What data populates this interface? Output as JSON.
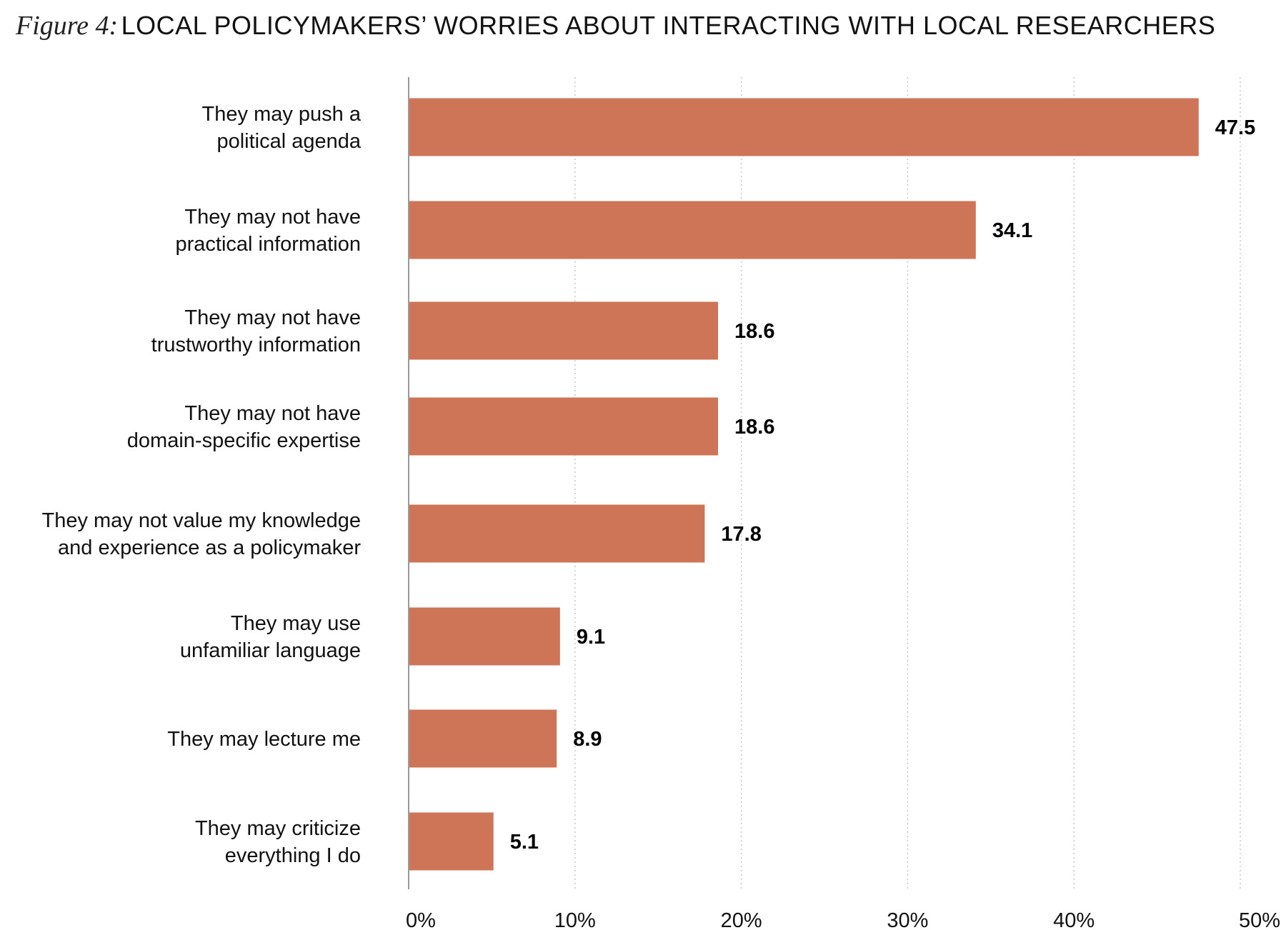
{
  "title": {
    "figure_label": "Figure 4:",
    "text": "LOCAL POLICYMAKERS’ WORRIES ABOUT INTERACTING WITH LOCAL RESEARCHERS"
  },
  "colors": {
    "bar": "#cf7557",
    "axis": "#9a9a9a",
    "grid": "#c8c8c8"
  },
  "chart_data": {
    "type": "bar",
    "orientation": "horizontal",
    "title": "LOCAL POLICYMAKERS’ WORRIES ABOUT INTERACTING WITH LOCAL RESEARCHERS",
    "xlabel": "",
    "ylabel": "",
    "xlim": [
      0,
      50
    ],
    "grid": "vertical dotted",
    "legend": "none",
    "categories": [
      [
        "They may push a",
        "political agenda"
      ],
      [
        "They may not have",
        "practical information"
      ],
      [
        "They may not have",
        "trustworthy information"
      ],
      [
        "They may not have",
        "domain-specific expertise"
      ],
      [
        "They may not value my knowledge",
        "and experience as a policymaker"
      ],
      [
        "They may use",
        "unfamiliar language"
      ],
      [
        "They may lecture me"
      ],
      [
        "They may criticize",
        "everything I do"
      ]
    ],
    "values": [
      47.5,
      34.1,
      18.6,
      18.6,
      17.8,
      9.1,
      8.9,
      5.1
    ],
    "value_labels": [
      "47.5",
      "34.1",
      "18.6",
      "18.6",
      "17.8",
      "9.1",
      "8.9",
      "5.1"
    ],
    "x_ticks": [
      0,
      10,
      20,
      30,
      40,
      50
    ],
    "x_tick_labels": [
      "0%",
      "10%",
      "20%",
      "30%",
      "40%",
      "50%"
    ]
  }
}
